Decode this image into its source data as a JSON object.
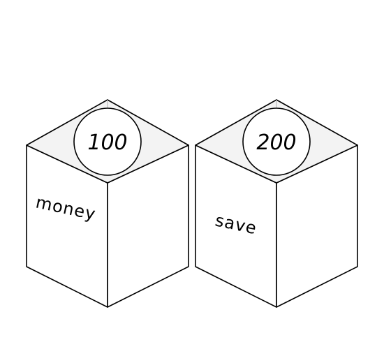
{
  "boxes": [
    {
      "coin_value": "100",
      "side_label": "money"
    },
    {
      "coin_value": "200",
      "side_label": "save"
    }
  ],
  "colors": {
    "stroke": "#000000",
    "top_face": "#f3f3f3",
    "side_face": "#ffffff"
  }
}
